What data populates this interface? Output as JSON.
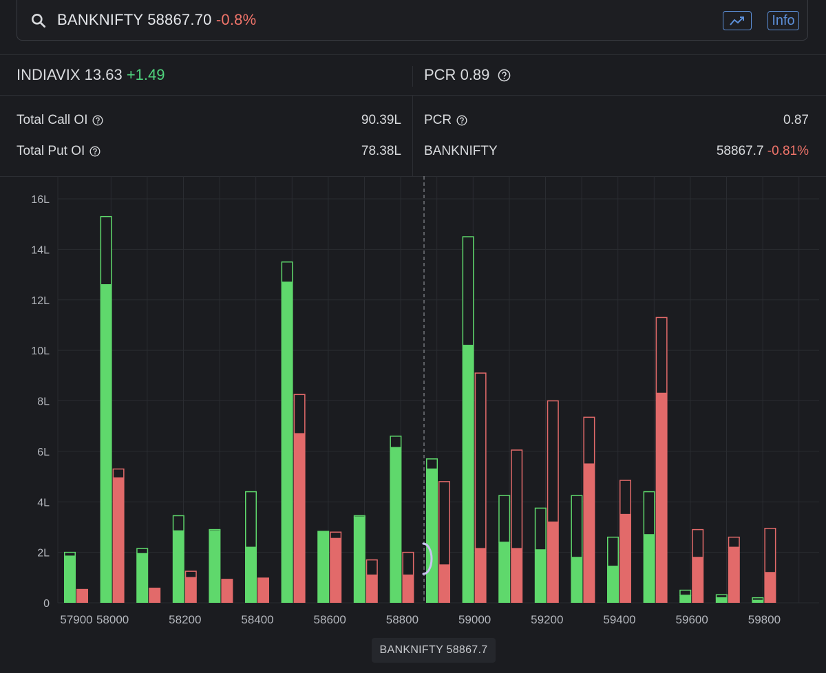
{
  "header": {
    "symbol": "BANKNIFTY",
    "price": "58867.70",
    "change": "-0.8%",
    "trend_icon": "trend-chart-icon",
    "info_label": "Info"
  },
  "indiavix": {
    "label": "INDIAVIX",
    "value": "13.63",
    "change": "+1.49"
  },
  "pcr_top": {
    "label": "PCR",
    "value": "0.89"
  },
  "stats": {
    "total_call_oi_label": "Total Call OI",
    "total_call_oi": "90.39L",
    "total_put_oi_label": "Total Put OI",
    "total_put_oi": "78.38L",
    "pcr_label": "PCR",
    "pcr_value": "0.87",
    "banknifty_label": "BANKNIFTY",
    "banknifty_value": "58867.7",
    "banknifty_change": "-0.81%"
  },
  "colors": {
    "call": "#5fd86c",
    "put": "#e26a6a",
    "call_hatch": "#2e7a3a",
    "put_hatch": "#8a3a3a",
    "grid": "#2a2c31",
    "spot_line": "#8a8c92"
  },
  "spot_badge": "BANKNIFTY 58867.7",
  "chart_data": {
    "type": "bar",
    "ylabel_ticks": [
      "0",
      "2L",
      "4L",
      "6L",
      "8L",
      "10L",
      "12L",
      "14L",
      "16L"
    ],
    "ylim": [
      0,
      16
    ],
    "unit": "L",
    "x_tick_labels": [
      "57900",
      "58000",
      "58200",
      "58400",
      "58600",
      "58800",
      "59000",
      "59200",
      "59400",
      "59600",
      "59800"
    ],
    "spot": 58867.7,
    "strikes": [
      57900,
      58000,
      58100,
      58200,
      58300,
      58400,
      58500,
      58600,
      58700,
      58800,
      58900,
      59000,
      59100,
      59200,
      59300,
      59400,
      59500,
      59600,
      59700,
      59800
    ],
    "series": [
      {
        "name": "Call OI",
        "current": [
          1.85,
          12.6,
          1.95,
          2.85,
          2.85,
          2.2,
          12.7,
          2.85,
          3.4,
          6.15,
          5.3,
          10.2,
          2.4,
          2.1,
          1.8,
          1.45,
          2.7,
          0.3,
          0.2,
          0.1
        ],
        "previous": [
          2.0,
          15.3,
          2.15,
          3.45,
          2.9,
          4.4,
          13.5,
          2.85,
          3.45,
          6.6,
          5.7,
          14.5,
          4.25,
          3.75,
          4.25,
          2.6,
          4.4,
          0.5,
          0.32,
          0.2
        ]
      },
      {
        "name": "Put OI",
        "current": [
          0.55,
          4.95,
          0.6,
          1.0,
          0.95,
          1.0,
          6.7,
          2.55,
          1.1,
          1.1,
          1.5,
          2.15,
          2.15,
          3.2,
          5.5,
          3.5,
          8.3,
          1.8,
          2.2,
          1.2
        ],
        "previous": [
          0.55,
          5.3,
          0.6,
          1.25,
          0.95,
          1.0,
          8.25,
          2.8,
          1.7,
          2.0,
          4.8,
          9.1,
          6.05,
          8.0,
          7.35,
          4.85,
          11.3,
          2.9,
          2.6,
          2.95
        ]
      }
    ]
  }
}
